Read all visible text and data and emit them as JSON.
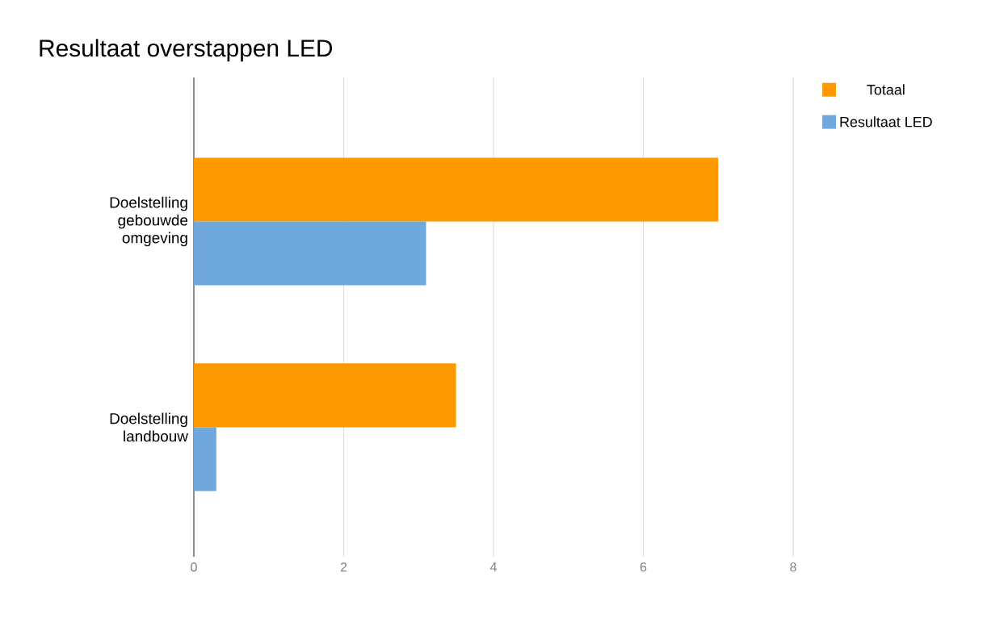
{
  "chart_data": {
    "type": "bar",
    "orientation": "horizontal",
    "title": "Resultaat overstappen LED",
    "categories": [
      "Doelstelling gebouwde omgeving",
      "Doelstelling landbouw"
    ],
    "series": [
      {
        "name": "Totaal",
        "color": "#ff9900",
        "values": [
          7.0,
          3.5
        ]
      },
      {
        "name": "Resultaat LED",
        "color": "#6fa8dc",
        "values": [
          3.1,
          0.3
        ]
      }
    ],
    "xlim": [
      0,
      8
    ],
    "xticks": [
      0,
      2,
      4,
      6,
      8
    ],
    "grid": "x",
    "legend": "top right"
  }
}
